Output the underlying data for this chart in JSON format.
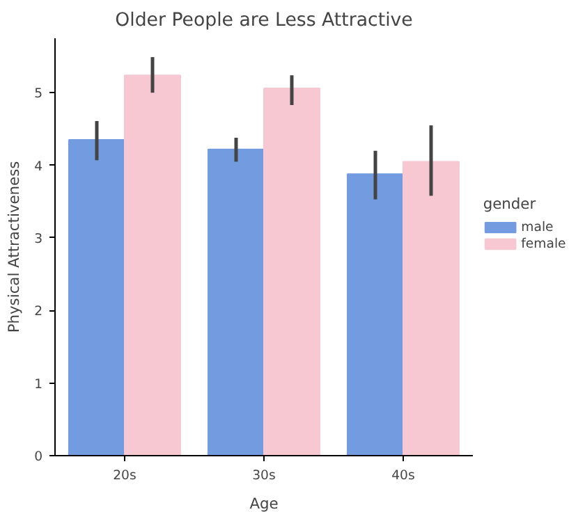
{
  "chart_data": {
    "type": "bar",
    "title": "Older People are Less Attractive",
    "xlabel": "Age",
    "ylabel": "Physical Attractiveness",
    "legend_title": "gender",
    "categories": [
      "20s",
      "30s",
      "40s"
    ],
    "series": [
      {
        "name": "male",
        "color": "#739be0",
        "values": [
          4.35,
          4.22,
          3.88
        ],
        "errors": [
          [
            4.07,
            4.61
          ],
          [
            4.05,
            4.38
          ],
          [
            3.53,
            4.2
          ]
        ]
      },
      {
        "name": "female",
        "color": "#f7c8d2",
        "values": [
          5.24,
          5.06,
          4.05
        ],
        "errors": [
          [
            5.0,
            5.49
          ],
          [
            4.83,
            5.24
          ],
          [
            3.58,
            4.55
          ]
        ]
      }
    ],
    "ylim": [
      0,
      5.75
    ],
    "yticks": [
      0,
      1,
      2,
      3,
      4,
      5
    ],
    "grid": false,
    "legend": "right"
  }
}
